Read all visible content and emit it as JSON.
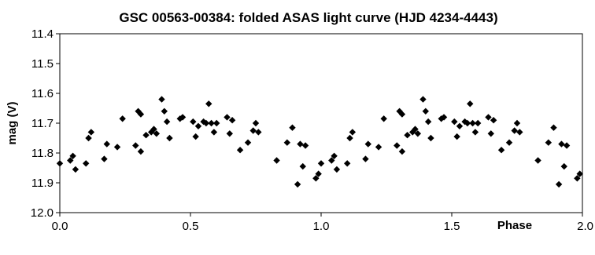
{
  "chart_data": {
    "type": "scatter",
    "title": "GSC 00563-00384: folded ASAS light curve (HJD 4234-4443)",
    "xlabel": "Phase",
    "ylabel": "mag (V)",
    "xlim": [
      0.0,
      2.0
    ],
    "ylim": [
      11.4,
      12.0
    ],
    "y_inverted": true,
    "grid": false,
    "legend": "none",
    "marker": "diamond",
    "marker_color": "#000000",
    "x_ticks": [
      "0.0",
      "0.5",
      "1.0",
      "1.5",
      "2.0"
    ],
    "y_ticks": [
      "11.4",
      "11.5",
      "11.6",
      "11.7",
      "11.8",
      "11.9",
      "12.0"
    ],
    "points": [
      {
        "x": 0.0,
        "y": 11.835
      },
      {
        "x": 0.04,
        "y": 11.825
      },
      {
        "x": 0.05,
        "y": 11.81
      },
      {
        "x": 0.06,
        "y": 11.855
      },
      {
        "x": 0.1,
        "y": 11.835
      },
      {
        "x": 0.11,
        "y": 11.75
      },
      {
        "x": 0.12,
        "y": 11.73
      },
      {
        "x": 0.17,
        "y": 11.82
      },
      {
        "x": 0.18,
        "y": 11.77
      },
      {
        "x": 0.22,
        "y": 11.78
      },
      {
        "x": 0.24,
        "y": 11.685
      },
      {
        "x": 0.29,
        "y": 11.775
      },
      {
        "x": 0.3,
        "y": 11.66
      },
      {
        "x": 0.31,
        "y": 11.67
      },
      {
        "x": 0.31,
        "y": 11.795
      },
      {
        "x": 0.33,
        "y": 11.74
      },
      {
        "x": 0.35,
        "y": 11.73
      },
      {
        "x": 0.36,
        "y": 11.72
      },
      {
        "x": 0.37,
        "y": 11.735
      },
      {
        "x": 0.39,
        "y": 11.62
      },
      {
        "x": 0.4,
        "y": 11.66
      },
      {
        "x": 0.41,
        "y": 11.695
      },
      {
        "x": 0.42,
        "y": 11.75
      },
      {
        "x": 0.46,
        "y": 11.685
      },
      {
        "x": 0.47,
        "y": 11.68
      },
      {
        "x": 0.51,
        "y": 11.695
      },
      {
        "x": 0.52,
        "y": 11.745
      },
      {
        "x": 0.53,
        "y": 11.71
      },
      {
        "x": 0.55,
        "y": 11.695
      },
      {
        "x": 0.56,
        "y": 11.7
      },
      {
        "x": 0.57,
        "y": 11.635
      },
      {
        "x": 0.58,
        "y": 11.7
      },
      {
        "x": 0.59,
        "y": 11.73
      },
      {
        "x": 0.6,
        "y": 11.7
      },
      {
        "x": 0.64,
        "y": 11.68
      },
      {
        "x": 0.65,
        "y": 11.735
      },
      {
        "x": 0.66,
        "y": 11.69
      },
      {
        "x": 0.69,
        "y": 11.79
      },
      {
        "x": 0.72,
        "y": 11.765
      },
      {
        "x": 0.74,
        "y": 11.725
      },
      {
        "x": 0.75,
        "y": 11.7
      },
      {
        "x": 0.76,
        "y": 11.73
      },
      {
        "x": 0.83,
        "y": 11.825
      },
      {
        "x": 0.87,
        "y": 11.765
      },
      {
        "x": 0.89,
        "y": 11.715
      },
      {
        "x": 0.91,
        "y": 11.905
      },
      {
        "x": 0.92,
        "y": 11.77
      },
      {
        "x": 0.93,
        "y": 11.845
      },
      {
        "x": 0.94,
        "y": 11.775
      },
      {
        "x": 0.98,
        "y": 11.885
      },
      {
        "x": 0.99,
        "y": 11.87
      },
      {
        "x": 1.0,
        "y": 11.835
      },
      {
        "x": 1.04,
        "y": 11.825
      },
      {
        "x": 1.05,
        "y": 11.81
      },
      {
        "x": 1.06,
        "y": 11.855
      },
      {
        "x": 1.1,
        "y": 11.835
      },
      {
        "x": 1.11,
        "y": 11.75
      },
      {
        "x": 1.12,
        "y": 11.73
      },
      {
        "x": 1.17,
        "y": 11.82
      },
      {
        "x": 1.18,
        "y": 11.77
      },
      {
        "x": 1.22,
        "y": 11.78
      },
      {
        "x": 1.24,
        "y": 11.685
      },
      {
        "x": 1.29,
        "y": 11.775
      },
      {
        "x": 1.3,
        "y": 11.66
      },
      {
        "x": 1.31,
        "y": 11.67
      },
      {
        "x": 1.31,
        "y": 11.795
      },
      {
        "x": 1.33,
        "y": 11.74
      },
      {
        "x": 1.35,
        "y": 11.73
      },
      {
        "x": 1.36,
        "y": 11.72
      },
      {
        "x": 1.37,
        "y": 11.735
      },
      {
        "x": 1.39,
        "y": 11.62
      },
      {
        "x": 1.4,
        "y": 11.66
      },
      {
        "x": 1.41,
        "y": 11.695
      },
      {
        "x": 1.42,
        "y": 11.75
      },
      {
        "x": 1.46,
        "y": 11.685
      },
      {
        "x": 1.47,
        "y": 11.68
      },
      {
        "x": 1.51,
        "y": 11.695
      },
      {
        "x": 1.52,
        "y": 11.745
      },
      {
        "x": 1.53,
        "y": 11.71
      },
      {
        "x": 1.55,
        "y": 11.695
      },
      {
        "x": 1.56,
        "y": 11.7
      },
      {
        "x": 1.57,
        "y": 11.635
      },
      {
        "x": 1.58,
        "y": 11.7
      },
      {
        "x": 1.59,
        "y": 11.73
      },
      {
        "x": 1.6,
        "y": 11.7
      },
      {
        "x": 1.64,
        "y": 11.68
      },
      {
        "x": 1.65,
        "y": 11.735
      },
      {
        "x": 1.66,
        "y": 11.69
      },
      {
        "x": 1.69,
        "y": 11.79
      },
      {
        "x": 1.72,
        "y": 11.765
      },
      {
        "x": 1.74,
        "y": 11.725
      },
      {
        "x": 1.75,
        "y": 11.7
      },
      {
        "x": 1.76,
        "y": 11.73
      },
      {
        "x": 1.83,
        "y": 11.825
      },
      {
        "x": 1.87,
        "y": 11.765
      },
      {
        "x": 1.89,
        "y": 11.715
      },
      {
        "x": 1.91,
        "y": 11.905
      },
      {
        "x": 1.92,
        "y": 11.77
      },
      {
        "x": 1.93,
        "y": 11.845
      },
      {
        "x": 1.94,
        "y": 11.775
      },
      {
        "x": 1.98,
        "y": 11.885
      },
      {
        "x": 1.99,
        "y": 11.87
      }
    ]
  }
}
